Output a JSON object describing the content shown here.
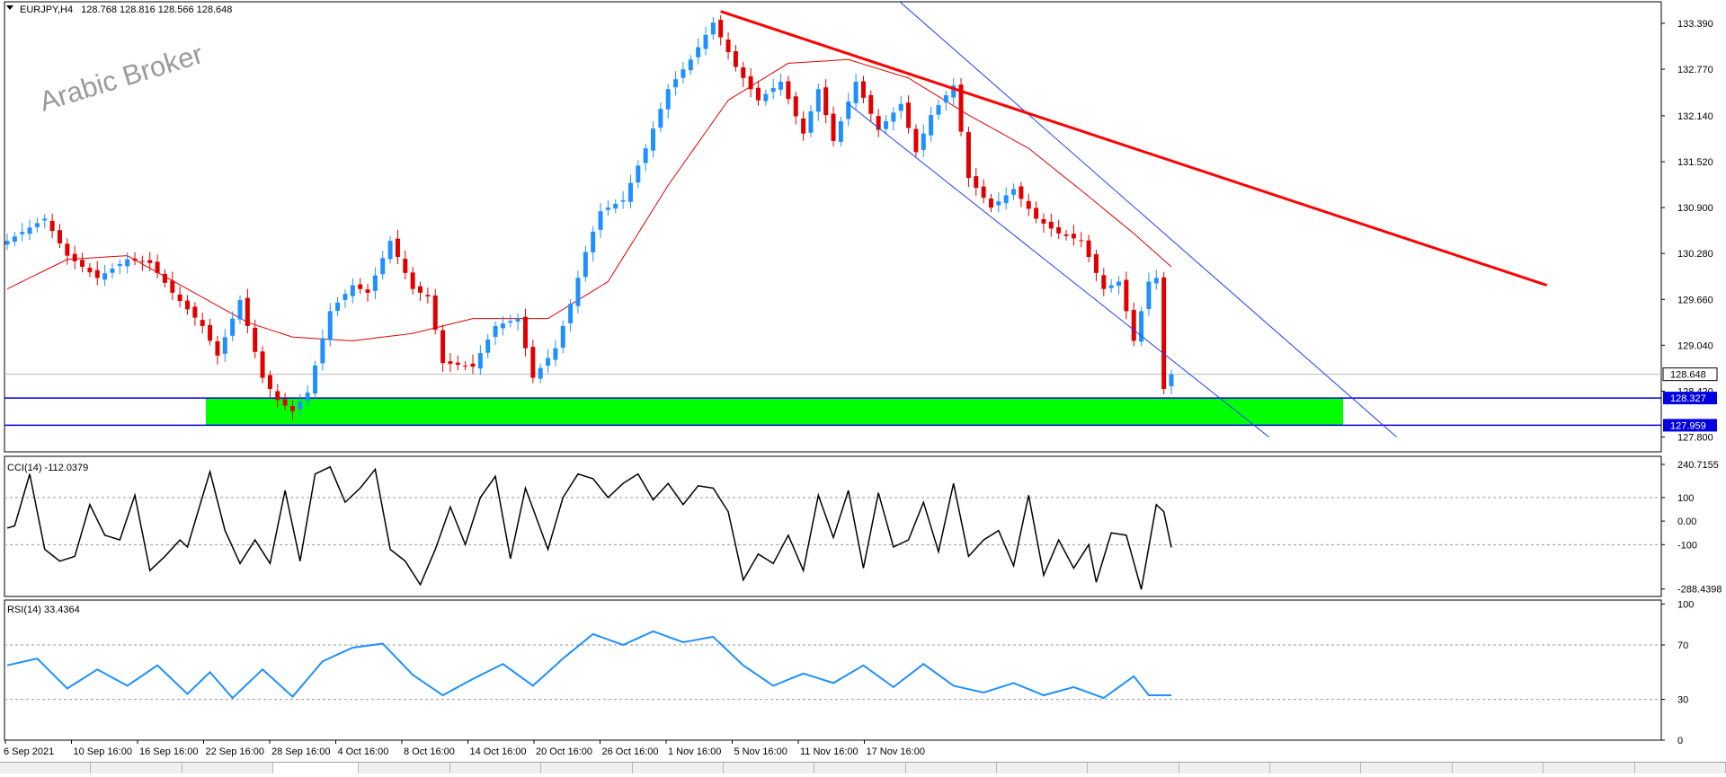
{
  "header": {
    "symbol": "EURJPY,H4",
    "ohlc": "128.768 128.816 128.566 128.648"
  },
  "watermark": "Arabic Broker",
  "chart_data": {
    "type": "candlestick",
    "x_ticks": [
      "6 Sep 2021",
      "10 Sep 16:00",
      "16 Sep 16:00",
      "22 Sep 16:00",
      "28 Sep 16:00",
      "4 Oct 16:00",
      "8 Oct 16:00",
      "14 Oct 16:00",
      "20 Oct 16:00",
      "26 Oct 16:00",
      "1 Nov 16:00",
      "5 Nov 16:00",
      "11 Nov 16:00",
      "17 Nov 16:00"
    ],
    "price_axis": {
      "ylim": [
        127.6,
        133.68
      ],
      "ticks": [
        "133.390",
        "132.770",
        "132.140",
        "131.520",
        "130.900",
        "130.280",
        "129.660",
        "129.040",
        "128.420",
        "127.800"
      ],
      "current_price_label": "128.648",
      "current_price": 128.648,
      "support_zone": {
        "top": 128.327,
        "bottom": 127.959,
        "top_label": "128.327",
        "bottom_label": "127.959",
        "color": "#00ff00"
      }
    },
    "candles": {
      "count": 156,
      "bull_color": "#1e90ff",
      "bear_color": "#e00000",
      "anchors": [
        [
          0,
          130.45
        ],
        [
          5,
          130.75
        ],
        [
          8,
          130.25
        ],
        [
          12,
          129.95
        ],
        [
          16,
          130.2
        ],
        [
          19,
          130.15
        ],
        [
          22,
          129.75
        ],
        [
          26,
          129.3
        ],
        [
          28,
          128.9
        ],
        [
          31,
          129.65
        ],
        [
          34,
          128.6
        ],
        [
          36,
          128.3
        ],
        [
          38,
          128.15
        ],
        [
          40,
          128.4
        ],
        [
          43,
          129.5
        ],
        [
          46,
          129.85
        ],
        [
          48,
          129.75
        ],
        [
          51,
          130.45
        ],
        [
          54,
          129.8
        ],
        [
          56,
          129.7
        ],
        [
          58,
          128.8
        ],
        [
          62,
          128.75
        ],
        [
          65,
          129.3
        ],
        [
          68,
          129.4
        ],
        [
          70,
          128.6
        ],
        [
          73,
          129.0
        ],
        [
          75,
          129.6
        ],
        [
          77,
          130.3
        ],
        [
          79,
          130.85
        ],
        [
          82,
          131.0
        ],
        [
          85,
          131.7
        ],
        [
          88,
          132.5
        ],
        [
          91,
          132.9
        ],
        [
          94,
          133.4
        ],
        [
          97,
          132.8
        ],
        [
          100,
          132.35
        ],
        [
          103,
          132.6
        ],
        [
          106,
          131.9
        ],
        [
          108,
          132.5
        ],
        [
          110,
          131.8
        ],
        [
          113,
          132.6
        ],
        [
          116,
          131.95
        ],
        [
          119,
          132.3
        ],
        [
          121,
          131.65
        ],
        [
          123,
          132.15
        ],
        [
          126,
          132.55
        ],
        [
          128,
          131.3
        ],
        [
          131,
          130.9
        ],
        [
          134,
          131.15
        ],
        [
          137,
          130.75
        ],
        [
          140,
          130.55
        ],
        [
          143,
          130.45
        ],
        [
          146,
          129.8
        ],
        [
          148,
          129.9
        ],
        [
          150,
          129.1
        ],
        [
          152,
          129.9
        ],
        [
          153,
          129.95
        ],
        [
          154,
          128.45
        ],
        [
          155,
          128.648
        ]
      ]
    },
    "moving_average": {
      "color": "#e00000",
      "points": [
        [
          0,
          129.8
        ],
        [
          8,
          130.2
        ],
        [
          16,
          130.25
        ],
        [
          24,
          129.8
        ],
        [
          32,
          129.35
        ],
        [
          38,
          129.15
        ],
        [
          46,
          129.1
        ],
        [
          54,
          129.2
        ],
        [
          62,
          129.4
        ],
        [
          72,
          129.4
        ],
        [
          80,
          129.9
        ],
        [
          88,
          131.2
        ],
        [
          96,
          132.35
        ],
        [
          104,
          132.85
        ],
        [
          112,
          132.9
        ],
        [
          120,
          132.65
        ],
        [
          128,
          132.15
        ],
        [
          136,
          131.7
        ],
        [
          144,
          131.05
        ],
        [
          150,
          130.55
        ],
        [
          155,
          130.1
        ]
      ]
    },
    "trendline": {
      "color": "#ff0000",
      "from": [
        95,
        133.55
      ],
      "to": [
        205,
        129.85
      ]
    },
    "channel": {
      "color": "#1e3cff",
      "upper": {
        "from": [
          113,
          134.2
        ],
        "to": [
          185,
          127.8
        ]
      },
      "lower": {
        "from": [
          112,
          132.3
        ],
        "to": [
          168,
          127.8
        ]
      }
    },
    "cci": {
      "label": "CCI(14) -112.0379",
      "ylim": [
        -320,
        275
      ],
      "ticks": [
        "240.7155",
        "100",
        "0.00",
        "-100",
        "-288.4398"
      ],
      "tick_values": [
        240.7155,
        100,
        0,
        -100,
        -288.4398
      ],
      "levels": [
        100,
        -100
      ],
      "color": "#000000",
      "points": [
        [
          0,
          -30
        ],
        [
          1,
          -20
        ],
        [
          3,
          200
        ],
        [
          5,
          -120
        ],
        [
          7,
          -170
        ],
        [
          9,
          -150
        ],
        [
          11,
          70
        ],
        [
          13,
          -60
        ],
        [
          15,
          -80
        ],
        [
          17,
          110
        ],
        [
          19,
          -210
        ],
        [
          21,
          -150
        ],
        [
          23,
          -80
        ],
        [
          24,
          -110
        ],
        [
          27,
          210
        ],
        [
          29,
          -40
        ],
        [
          31,
          -180
        ],
        [
          33,
          -80
        ],
        [
          35,
          -180
        ],
        [
          37,
          130
        ],
        [
          39,
          -170
        ],
        [
          41,
          200
        ],
        [
          43,
          230
        ],
        [
          45,
          80
        ],
        [
          47,
          140
        ],
        [
          49,
          220
        ],
        [
          51,
          -120
        ],
        [
          53,
          -170
        ],
        [
          55,
          -270
        ],
        [
          57,
          -120
        ],
        [
          59,
          60
        ],
        [
          61,
          -100
        ],
        [
          63,
          100
        ],
        [
          65,
          190
        ],
        [
          67,
          -160
        ],
        [
          69,
          140
        ],
        [
          72,
          -120
        ],
        [
          74,
          100
        ],
        [
          76,
          200
        ],
        [
          78,
          180
        ],
        [
          80,
          100
        ],
        [
          82,
          160
        ],
        [
          84,
          200
        ],
        [
          86,
          90
        ],
        [
          88,
          160
        ],
        [
          90,
          70
        ],
        [
          92,
          150
        ],
        [
          94,
          140
        ],
        [
          96,
          40
        ],
        [
          98,
          -250
        ],
        [
          100,
          -140
        ],
        [
          102,
          -180
        ],
        [
          104,
          -60
        ],
        [
          106,
          -210
        ],
        [
          108,
          110
        ],
        [
          110,
          -70
        ],
        [
          112,
          130
        ],
        [
          114,
          -200
        ],
        [
          116,
          120
        ],
        [
          118,
          -110
        ],
        [
          120,
          -80
        ],
        [
          122,
          80
        ],
        [
          124,
          -130
        ],
        [
          126,
          160
        ],
        [
          128,
          -150
        ],
        [
          130,
          -80
        ],
        [
          132,
          -40
        ],
        [
          134,
          -190
        ],
        [
          136,
          110
        ],
        [
          138,
          -230
        ],
        [
          140,
          -80
        ],
        [
          142,
          -200
        ],
        [
          144,
          -100
        ],
        [
          145,
          -260
        ],
        [
          147,
          -50
        ],
        [
          149,
          -60
        ],
        [
          151,
          -290
        ],
        [
          153,
          70
        ],
        [
          154,
          40
        ],
        [
          155,
          -112
        ]
      ]
    },
    "rsi": {
      "label": "RSI(14) 33.4364",
      "ylim": [
        0,
        103
      ],
      "ticks": [
        "100",
        "70",
        "30",
        "0"
      ],
      "tick_values": [
        100,
        70,
        30,
        0
      ],
      "levels": [
        70,
        30
      ],
      "color": "#1e90ff",
      "points": [
        [
          0,
          55
        ],
        [
          4,
          60
        ],
        [
          8,
          38
        ],
        [
          12,
          52
        ],
        [
          16,
          40
        ],
        [
          20,
          55
        ],
        [
          24,
          34
        ],
        [
          27,
          50
        ],
        [
          30,
          31
        ],
        [
          34,
          52
        ],
        [
          38,
          32
        ],
        [
          42,
          58
        ],
        [
          46,
          68
        ],
        [
          50,
          71
        ],
        [
          54,
          48
        ],
        [
          58,
          33
        ],
        [
          62,
          45
        ],
        [
          66,
          56
        ],
        [
          70,
          40
        ],
        [
          74,
          60
        ],
        [
          78,
          78
        ],
        [
          82,
          70
        ],
        [
          86,
          80
        ],
        [
          90,
          72
        ],
        [
          94,
          76
        ],
        [
          98,
          55
        ],
        [
          102,
          40
        ],
        [
          106,
          49
        ],
        [
          110,
          42
        ],
        [
          114,
          55
        ],
        [
          118,
          39
        ],
        [
          122,
          56
        ],
        [
          126,
          40
        ],
        [
          130,
          35
        ],
        [
          134,
          42
        ],
        [
          138,
          33
        ],
        [
          142,
          39
        ],
        [
          146,
          31
        ],
        [
          150,
          47
        ],
        [
          152,
          33
        ],
        [
          155,
          33
        ]
      ]
    }
  },
  "tabs": [
    "EURJPY,H4"
  ]
}
